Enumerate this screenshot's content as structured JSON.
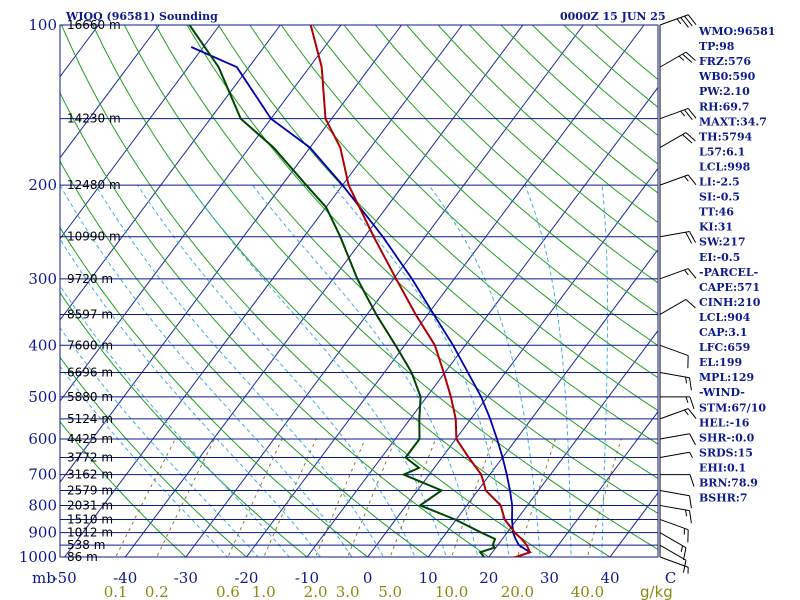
{
  "header": {
    "station": "WIQQ (96581) Sounding",
    "time": "0000Z 15 JUN 25"
  },
  "colors": {
    "isobar": "#0b1a8c",
    "isotherm": "#1a2aa0",
    "dry_adiabat": "#22a022",
    "moist_adiabat": "#40b0e0",
    "mixing_ratio": "#8a7a30",
    "temperature": "#b00000",
    "dewpoint": "#004400",
    "parcel": "#0000b0",
    "wind": "#000000"
  },
  "chart_data": {
    "type": "skew-t",
    "pressure_axis": {
      "scale": "log",
      "range_hpa": [
        1000,
        100
      ],
      "tick_labels": [
        100,
        200,
        300,
        400,
        500,
        600,
        700,
        800,
        900,
        1000
      ],
      "unit_label": "mb"
    },
    "temperature_axis": {
      "range_c": [
        -50,
        50
      ],
      "tick_labels": [
        "-50",
        "-40",
        "-30",
        "-20",
        "-10",
        "0",
        "10",
        "20",
        "30",
        "40",
        "C"
      ]
    },
    "mixing_ratio_labels": [
      "0.1",
      "0.2",
      "0.6",
      "1.0",
      "2.0",
      "3.0",
      "5.0",
      "10.0",
      "20.0",
      "40.0"
    ],
    "mixing_ratio_unit": "g/kg",
    "mixing_ratio_values": [
      0.1,
      0.2,
      0.6,
      1.0,
      2.0,
      3.0,
      5.0,
      10.0,
      20.0,
      40.0
    ],
    "height_levels": [
      {
        "p": 100,
        "label": "16660 m"
      },
      {
        "p": 150,
        "label": "14230 m"
      },
      {
        "p": 200,
        "label": "12480 m"
      },
      {
        "p": 250,
        "label": "10990 m"
      },
      {
        "p": 300,
        "label": "9720 m"
      },
      {
        "p": 350,
        "label": "8597 m"
      },
      {
        "p": 400,
        "label": "7600 m"
      },
      {
        "p": 450,
        "label": "6696 m"
      },
      {
        "p": 500,
        "label": "5880 m"
      },
      {
        "p": 550,
        "label": "5124 m"
      },
      {
        "p": 600,
        "label": "4425 m"
      },
      {
        "p": 650,
        "label": "3772 m"
      },
      {
        "p": 700,
        "label": "3162 m"
      },
      {
        "p": 750,
        "label": "2579 m"
      },
      {
        "p": 800,
        "label": "2031 m"
      },
      {
        "p": 850,
        "label": "1510 m"
      },
      {
        "p": 900,
        "label": "1012 m"
      },
      {
        "p": 950,
        "label": "538 m"
      },
      {
        "p": 1000,
        "label": "86 m"
      }
    ],
    "temperature_profile": [
      [
        1008,
        23.0
      ],
      [
        1000,
        24.5
      ],
      [
        980,
        26.2
      ],
      [
        950,
        24.8
      ],
      [
        925,
        23.2
      ],
      [
        900,
        21.3
      ],
      [
        850,
        18.0
      ],
      [
        800,
        15.6
      ],
      [
        750,
        11.3
      ],
      [
        700,
        8.6
      ],
      [
        650,
        4.4
      ],
      [
        600,
        0.1
      ],
      [
        550,
        -2.5
      ],
      [
        500,
        -6.0
      ],
      [
        450,
        -10.2
      ],
      [
        400,
        -15.0
      ],
      [
        350,
        -22.0
      ],
      [
        300,
        -29.6
      ],
      [
        250,
        -38.5
      ],
      [
        200,
        -49.0
      ],
      [
        170,
        -55.0
      ],
      [
        150,
        -61.0
      ],
      [
        120,
        -68.0
      ],
      [
        100,
        -75.0
      ]
    ],
    "dewpoint_profile": [
      [
        1008,
        19.8
      ],
      [
        1000,
        19.2
      ],
      [
        980,
        18.0
      ],
      [
        960,
        19.8
      ],
      [
        950,
        19.2
      ],
      [
        925,
        18.8
      ],
      [
        900,
        15.8
      ],
      [
        850,
        9.8
      ],
      [
        800,
        2.3
      ],
      [
        750,
        4.0
      ],
      [
        700,
        -4.2
      ],
      [
        680,
        -2.5
      ],
      [
        650,
        -6.0
      ],
      [
        600,
        -6.0
      ],
      [
        550,
        -8.5
      ],
      [
        500,
        -11.0
      ],
      [
        450,
        -15.5
      ],
      [
        400,
        -21.5
      ],
      [
        350,
        -28.5
      ],
      [
        300,
        -36.0
      ],
      [
        250,
        -44.0
      ],
      [
        220,
        -50.0
      ],
      [
        200,
        -56.0
      ],
      [
        170,
        -66.0
      ],
      [
        150,
        -75.0
      ],
      [
        120,
        -85.0
      ],
      [
        100,
        -95.0
      ]
    ],
    "parcel_profile": [
      [
        1000,
        24.5
      ],
      [
        980,
        26.2
      ],
      [
        950,
        23.5
      ],
      [
        925,
        22.2
      ],
      [
        900,
        21.0
      ],
      [
        850,
        19.2
      ],
      [
        800,
        17.5
      ],
      [
        750,
        15.3
      ],
      [
        700,
        12.8
      ],
      [
        650,
        10.0
      ],
      [
        600,
        6.8
      ],
      [
        550,
        3.2
      ],
      [
        500,
        -1.0
      ],
      [
        450,
        -6.2
      ],
      [
        400,
        -12.0
      ],
      [
        350,
        -19.0
      ],
      [
        300,
        -27.0
      ],
      [
        250,
        -37.0
      ],
      [
        200,
        -50.0
      ],
      [
        170,
        -60.0
      ],
      [
        150,
        -70.0
      ],
      [
        120,
        -82.0
      ],
      [
        110,
        -92.0
      ]
    ],
    "wind_profile": [
      {
        "p": 1000,
        "dir": 110,
        "spd": 5
      },
      {
        "p": 950,
        "dir": 120,
        "spd": 10
      },
      {
        "p": 900,
        "dir": 120,
        "spd": 15
      },
      {
        "p": 850,
        "dir": 110,
        "spd": 15
      },
      {
        "p": 800,
        "dir": 100,
        "spd": 15
      },
      {
        "p": 750,
        "dir": 100,
        "spd": 10
      },
      {
        "p": 700,
        "dir": 90,
        "spd": 10
      },
      {
        "p": 650,
        "dir": 80,
        "spd": 5
      },
      {
        "p": 600,
        "dir": 80,
        "spd": 10
      },
      {
        "p": 550,
        "dir": 70,
        "spd": 15
      },
      {
        "p": 500,
        "dir": 90,
        "spd": 15
      },
      {
        "p": 450,
        "dir": 100,
        "spd": 15
      },
      {
        "p": 400,
        "dir": 110,
        "spd": 10
      },
      {
        "p": 350,
        "dir": 60,
        "spd": 10
      },
      {
        "p": 300,
        "dir": 70,
        "spd": 15
      },
      {
        "p": 250,
        "dir": 80,
        "spd": 20
      },
      {
        "p": 200,
        "dir": 70,
        "spd": 15
      },
      {
        "p": 170,
        "dir": 60,
        "spd": 20
      },
      {
        "p": 150,
        "dir": 70,
        "spd": 25
      },
      {
        "p": 120,
        "dir": 60,
        "spd": 25
      },
      {
        "p": 100,
        "dir": 70,
        "spd": 35
      }
    ]
  },
  "indices": [
    "WMO:96581",
    "TP:98",
    "FRZ:576",
    "WB0:590",
    "PW:2.10",
    "RH:69.7",
    "MAXT:34.7",
    "TH:5794",
    "L57:6.1",
    "LCL:998",
    "LI:-2.5",
    "SI:-0.5",
    "TT:46",
    "KI:31",
    "SW:217",
    "EI:-0.5",
    "-PARCEL-",
    "CAPE:571",
    "CINH:210",
    "LCL:904",
    "CAP:3.1",
    "LFC:659",
    "EL:199",
    "MPL:129",
    "-WIND-",
    "STM:67/10",
    "HEL:-16",
    "SHR-:0.0",
    "SRDS:15",
    "EHI:0.1",
    "BRN:78.9",
    "BSHR:7"
  ]
}
